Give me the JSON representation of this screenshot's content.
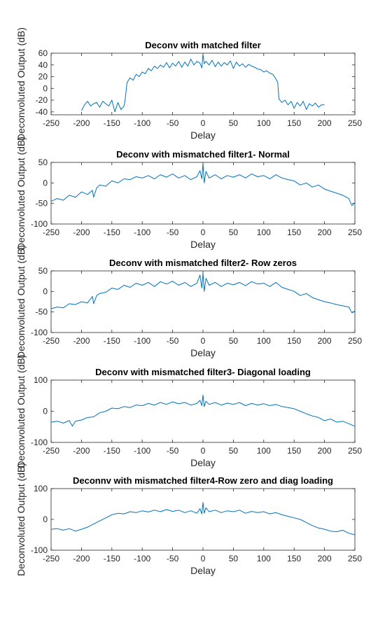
{
  "chart_data": [
    {
      "type": "line",
      "title": "Deconv with matched filter",
      "xlabel": "Delay",
      "ylabel": "Deconvoluted Output (dB)",
      "xlim": [
        -250,
        250
      ],
      "ylim": [
        -45,
        60
      ],
      "xticks": [
        -250,
        -200,
        -150,
        -100,
        -50,
        0,
        50,
        100,
        150,
        200,
        250
      ],
      "yticks": [
        -40,
        -20,
        0,
        20,
        40,
        60
      ],
      "series": [
        {
          "color": "#0072bd",
          "x": [
            -200,
            -195,
            -190,
            -185,
            -180,
            -175,
            -170,
            -165,
            -160,
            -155,
            -150,
            -145,
            -140,
            -135,
            -130,
            -128,
            -125,
            -120,
            -115,
            -110,
            -105,
            -100,
            -95,
            -90,
            -85,
            -80,
            -75,
            -70,
            -65,
            -60,
            -55,
            -50,
            -45,
            -40,
            -35,
            -30,
            -25,
            -20,
            -15,
            -10,
            -5,
            -2,
            0,
            2,
            5,
            10,
            15,
            20,
            25,
            30,
            35,
            40,
            45,
            50,
            55,
            60,
            65,
            70,
            75,
            80,
            85,
            90,
            95,
            100,
            105,
            110,
            115,
            120,
            123,
            125,
            130,
            135,
            140,
            145,
            150,
            155,
            160,
            165,
            170,
            175,
            180,
            185,
            190,
            195,
            200
          ],
          "y": [
            -38,
            -28,
            -22,
            -30,
            -26,
            -24,
            -32,
            -22,
            -26,
            -30,
            -20,
            -40,
            -24,
            -36,
            -30,
            -18,
            10,
            18,
            14,
            24,
            20,
            28,
            25,
            34,
            30,
            38,
            34,
            40,
            36,
            44,
            35,
            43,
            38,
            46,
            36,
            45,
            38,
            50,
            40,
            46,
            43,
            35,
            58,
            42,
            46,
            40,
            48,
            37,
            45,
            38,
            44,
            40,
            47,
            34,
            45,
            38,
            42,
            36,
            41,
            38,
            36,
            33,
            32,
            28,
            30,
            26,
            24,
            16,
            10,
            -18,
            -24,
            -20,
            -28,
            -22,
            -34,
            -24,
            -30,
            -22,
            -36,
            -26,
            -30,
            -25,
            -32,
            -28,
            -28
          ]
        }
      ]
    },
    {
      "type": "line",
      "title": "Deconv with mismatched filter1- Normal",
      "xlabel": "Delay",
      "ylabel": "Deconvoluted Output (dB)",
      "xlim": [
        -250,
        250
      ],
      "ylim": [
        -100,
        50
      ],
      "xticks": [
        -250,
        -200,
        -150,
        -100,
        -50,
        0,
        50,
        100,
        150,
        200,
        250
      ],
      "yticks": [
        -100,
        -50,
        0,
        50
      ],
      "series": [
        {
          "color": "#0072bd",
          "x": [
            -250,
            -240,
            -230,
            -220,
            -210,
            -200,
            -190,
            -182,
            -180,
            -175,
            -170,
            -160,
            -150,
            -140,
            -130,
            -120,
            -110,
            -100,
            -90,
            -80,
            -70,
            -60,
            -50,
            -40,
            -30,
            -20,
            -10,
            -5,
            -2,
            0,
            2,
            5,
            10,
            20,
            30,
            40,
            50,
            60,
            70,
            80,
            90,
            100,
            110,
            120,
            130,
            140,
            150,
            160,
            170,
            180,
            190,
            200,
            210,
            220,
            230,
            240,
            245,
            250
          ],
          "y": [
            -45,
            -38,
            -42,
            -30,
            -35,
            -22,
            -28,
            -18,
            -35,
            -12,
            -5,
            -8,
            5,
            0,
            10,
            8,
            15,
            12,
            18,
            10,
            20,
            14,
            22,
            12,
            18,
            8,
            15,
            30,
            10,
            48,
            0,
            28,
            12,
            20,
            10,
            18,
            14,
            20,
            12,
            22,
            15,
            18,
            10,
            20,
            12,
            8,
            5,
            -5,
            0,
            -10,
            -5,
            -15,
            -20,
            -25,
            -30,
            -38,
            -55,
            -48
          ]
        }
      ]
    },
    {
      "type": "line",
      "title": "Deconv with mismatched filter2- Row zeros",
      "xlabel": "Delay",
      "ylabel": "Deconvoluted Output (dB)",
      "xlim": [
        -250,
        250
      ],
      "ylim": [
        -100,
        50
      ],
      "xticks": [
        -250,
        -200,
        -150,
        -100,
        -50,
        0,
        50,
        100,
        150,
        200,
        250
      ],
      "yticks": [
        -100,
        -50,
        0,
        50
      ],
      "series": [
        {
          "color": "#0072bd",
          "x": [
            -250,
            -240,
            -230,
            -220,
            -210,
            -200,
            -190,
            -182,
            -180,
            -175,
            -170,
            -160,
            -150,
            -140,
            -130,
            -120,
            -110,
            -100,
            -90,
            -80,
            -70,
            -60,
            -50,
            -40,
            -30,
            -20,
            -10,
            -5,
            -2,
            0,
            2,
            5,
            10,
            20,
            30,
            40,
            50,
            60,
            70,
            80,
            90,
            100,
            110,
            120,
            130,
            140,
            150,
            160,
            170,
            180,
            190,
            200,
            210,
            220,
            230,
            240,
            245,
            250
          ],
          "y": [
            -42,
            -38,
            -40,
            -30,
            -32,
            -25,
            -28,
            -12,
            -30,
            -10,
            -5,
            -2,
            8,
            5,
            15,
            10,
            20,
            15,
            22,
            12,
            24,
            18,
            25,
            15,
            22,
            12,
            20,
            40,
            8,
            45,
            0,
            32,
            15,
            22,
            12,
            20,
            16,
            22,
            14,
            24,
            18,
            20,
            12,
            22,
            10,
            5,
            0,
            -10,
            -5,
            -15,
            -20,
            -25,
            -28,
            -32,
            -35,
            -38,
            -52,
            -48
          ]
        }
      ]
    },
    {
      "type": "line",
      "title": "Deconv with mismatched filter3- Diagonal loading",
      "xlabel": "Delay",
      "ylabel": "Deconvoluted Output (dB)",
      "xlim": [
        -250,
        250
      ],
      "ylim": [
        -100,
        100
      ],
      "xticks": [
        -250,
        -200,
        -150,
        -100,
        -50,
        0,
        50,
        100,
        150,
        200,
        250
      ],
      "yticks": [
        -100,
        0,
        100
      ],
      "series": [
        {
          "color": "#0072bd",
          "x": [
            -250,
            -240,
            -230,
            -220,
            -215,
            -210,
            -200,
            -190,
            -180,
            -170,
            -160,
            -150,
            -140,
            -130,
            -120,
            -110,
            -100,
            -90,
            -80,
            -70,
            -60,
            -50,
            -40,
            -30,
            -20,
            -10,
            -5,
            -2,
            0,
            2,
            5,
            10,
            20,
            30,
            40,
            50,
            60,
            70,
            80,
            90,
            100,
            110,
            120,
            130,
            140,
            150,
            160,
            170,
            180,
            190,
            200,
            210,
            220,
            230,
            240,
            250
          ],
          "y": [
            -35,
            -32,
            -38,
            -30,
            -48,
            -32,
            -28,
            -20,
            -18,
            -5,
            0,
            10,
            8,
            15,
            12,
            20,
            18,
            25,
            20,
            28,
            22,
            30,
            24,
            28,
            20,
            25,
            35,
            18,
            52,
            15,
            32,
            22,
            28,
            20,
            26,
            22,
            28,
            18,
            25,
            20,
            24,
            18,
            22,
            15,
            12,
            8,
            0,
            -8,
            -15,
            -20,
            -30,
            -25,
            -35,
            -32,
            -40,
            -48
          ]
        }
      ]
    },
    {
      "type": "line",
      "title": "Deconnv with mismatched filter4-Row zero and diag  loading",
      "xlabel": "Delay",
      "ylabel": "Deconvoluted Output (dB)",
      "xlim": [
        -250,
        250
      ],
      "ylim": [
        -100,
        100
      ],
      "xticks": [
        -250,
        -200,
        -150,
        -100,
        -50,
        0,
        50,
        100,
        150,
        200,
        250
      ],
      "yticks": [
        -100,
        0,
        100
      ],
      "series": [
        {
          "color": "#0072bd",
          "x": [
            -250,
            -240,
            -230,
            -220,
            -210,
            -200,
            -190,
            -180,
            -170,
            -160,
            -150,
            -140,
            -130,
            -120,
            -110,
            -100,
            -90,
            -80,
            -70,
            -60,
            -50,
            -40,
            -30,
            -20,
            -10,
            -5,
            -2,
            0,
            2,
            5,
            10,
            20,
            30,
            40,
            50,
            60,
            70,
            80,
            90,
            100,
            110,
            120,
            130,
            140,
            150,
            160,
            170,
            180,
            190,
            200,
            210,
            220,
            230,
            240,
            250
          ],
          "y": [
            -32,
            -30,
            -35,
            -30,
            -38,
            -32,
            -25,
            -15,
            -5,
            5,
            15,
            20,
            18,
            25,
            22,
            28,
            24,
            30,
            25,
            32,
            26,
            30,
            22,
            28,
            20,
            35,
            18,
            55,
            20,
            38,
            25,
            30,
            22,
            28,
            25,
            30,
            20,
            26,
            22,
            25,
            18,
            22,
            15,
            10,
            5,
            0,
            -10,
            -20,
            -28,
            -32,
            -38,
            -40,
            -35,
            -45,
            -50
          ]
        }
      ]
    }
  ]
}
